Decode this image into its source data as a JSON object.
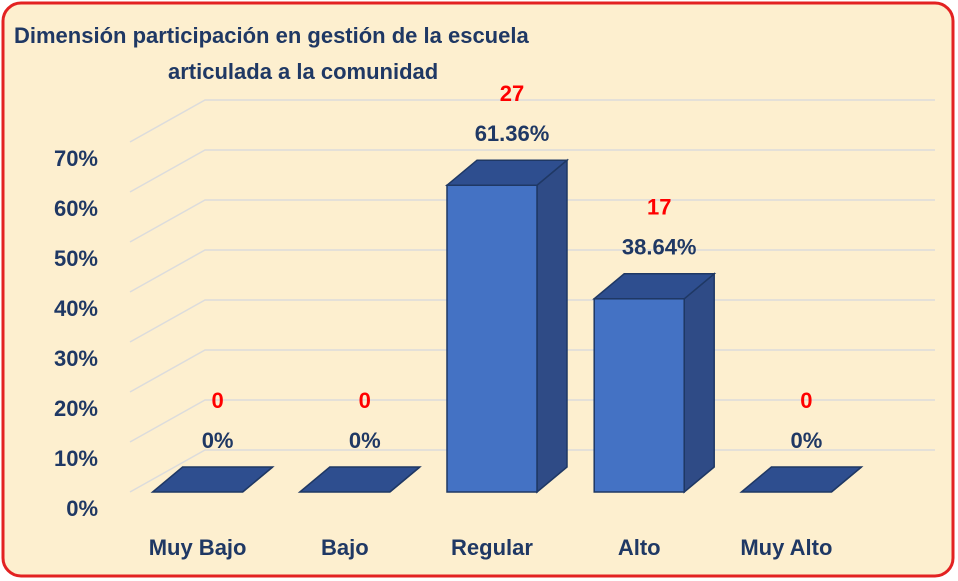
{
  "chart_data": {
    "type": "bar3d",
    "title": "Dimensión participación  en gestión de la escuela",
    "subtitle": "articulada a la comunidad",
    "categories": [
      "Muy Bajo",
      "Bajo",
      "Regular",
      "Alto",
      "Muy Alto"
    ],
    "values": [
      0,
      0,
      61.36,
      38.64,
      0
    ],
    "value_labels": [
      "0%",
      "0%",
      "61.36%",
      "38.64%",
      "0%"
    ],
    "counts": [
      0,
      0,
      27,
      17,
      0
    ],
    "color": "#4472c4",
    "ylim": [
      0,
      70
    ],
    "yticks": [
      {
        "value": 0,
        "label": "0%"
      },
      {
        "value": 10,
        "label": "10%"
      },
      {
        "value": 20,
        "label": "20%"
      },
      {
        "value": 30,
        "label": "30%"
      },
      {
        "value": 40,
        "label": "40%"
      },
      {
        "value": 50,
        "label": "50%"
      },
      {
        "value": 60,
        "label": "60%"
      },
      {
        "value": 70,
        "label": "70%"
      }
    ],
    "grid": true
  }
}
